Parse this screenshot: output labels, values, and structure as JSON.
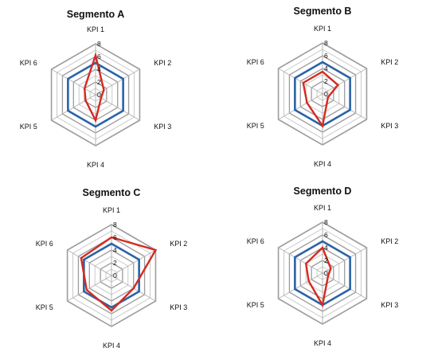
{
  "chart_data": [
    {
      "type": "radar",
      "title": "Segmento A",
      "axes": [
        "KPI 1",
        "KPI 2",
        "KPI 3",
        "KPI 4",
        "KPI 5",
        "KPI 6"
      ],
      "rlim": [
        0,
        8
      ],
      "ticks": [
        "0",
        "2",
        "4",
        "6",
        "8"
      ],
      "grid": true,
      "series": [
        {
          "color": "#2a63a6",
          "values": [
            5,
            5,
            5,
            5,
            5,
            5
          ]
        },
        {
          "color": "#d42a20",
          "values": [
            6.2,
            1.5,
            1.0,
            4.0,
            1.8,
            2.0
          ]
        }
      ]
    },
    {
      "type": "radar",
      "title": "Segmento B",
      "axes": [
        "KPI 1",
        "KPI 2",
        "KPI 3",
        "KPI 4",
        "KPI 5",
        "KPI 6"
      ],
      "rlim": [
        0,
        8
      ],
      "ticks": [
        "0",
        "2",
        "4",
        "6",
        "8"
      ],
      "grid": true,
      "series": [
        {
          "color": "#2a63a6",
          "values": [
            5,
            5,
            5,
            5,
            5,
            5
          ]
        },
        {
          "color": "#d42a20",
          "values": [
            3.5,
            2.8,
            1.0,
            5.0,
            2.8,
            3.5
          ]
        }
      ]
    },
    {
      "type": "radar",
      "title": "Segmento C",
      "axes": [
        "KPI 1",
        "KPI 2",
        "KPI 3",
        "KPI 4",
        "KPI 5",
        "KPI 6"
      ],
      "rlim": [
        0,
        8
      ],
      "ticks": [
        "0",
        "2",
        "4",
        "6",
        "8"
      ],
      "grid": true,
      "series": [
        {
          "color": "#2a63a6",
          "values": [
            5,
            5,
            5,
            5,
            5,
            5
          ]
        },
        {
          "color": "#d42a20",
          "values": [
            6.0,
            8.0,
            4.0,
            5.5,
            4.5,
            5.5
          ]
        }
      ]
    },
    {
      "type": "radar",
      "title": "Segmento D",
      "axes": [
        "KPI 1",
        "KPI 2",
        "KPI 3",
        "KPI 4",
        "KPI 5",
        "KPI 6"
      ],
      "rlim": [
        0,
        8
      ],
      "ticks": [
        "0",
        "2",
        "4",
        "6",
        "8"
      ],
      "grid": true,
      "series": [
        {
          "color": "#2a63a6",
          "values": [
            5,
            5,
            5,
            5,
            5,
            5
          ]
        },
        {
          "color": "#d42a20",
          "values": [
            4.0,
            1.5,
            1.0,
            5.0,
            2.5,
            3.0
          ]
        }
      ]
    }
  ]
}
